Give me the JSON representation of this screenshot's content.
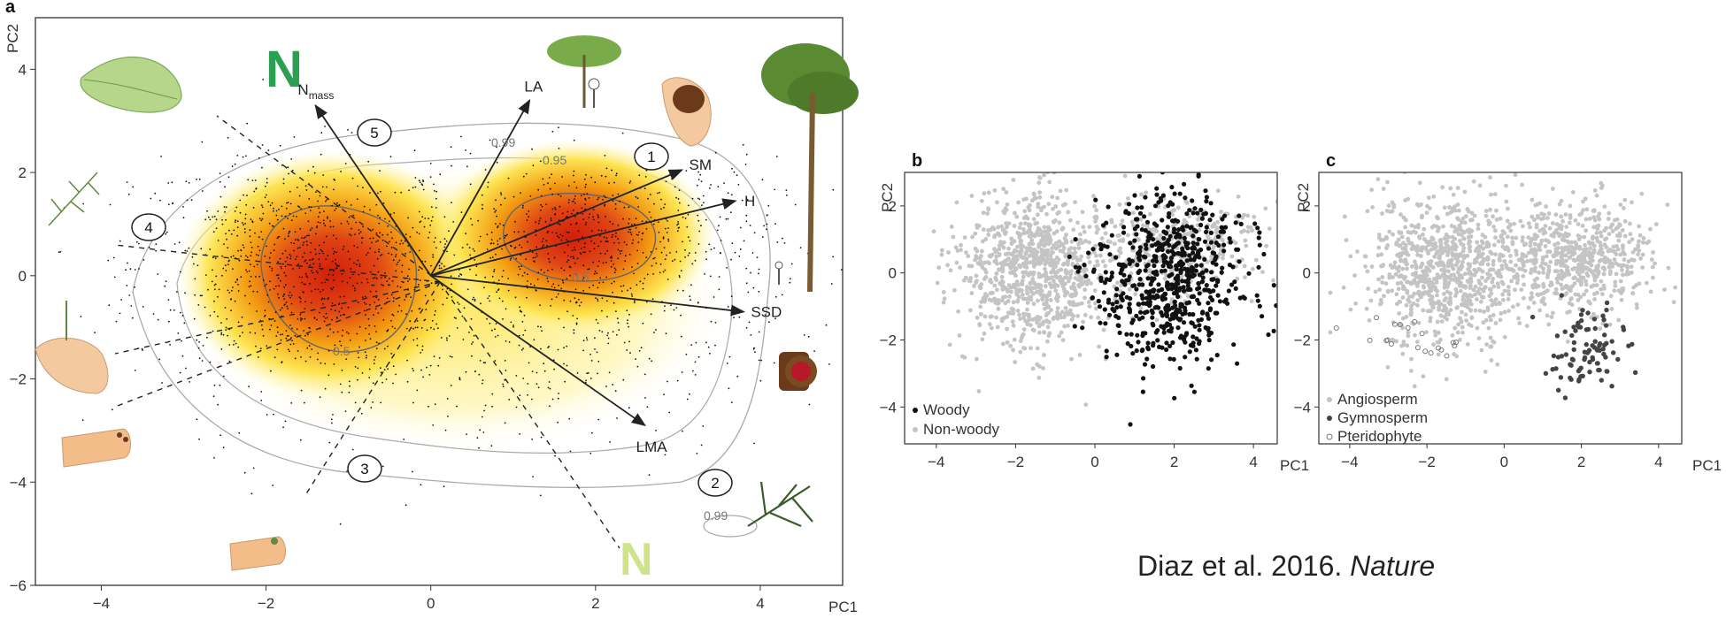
{
  "chart_data": [
    {
      "panel": "a",
      "type": "scatter",
      "description_type": "PCA biplot with density shading and trait loading arrows",
      "xlabel": "PC1",
      "ylabel": "PC2",
      "xlim": [
        -4.8,
        5.0
      ],
      "ylim": [
        -6,
        5.0
      ],
      "xticks": [
        -4,
        -2,
        0,
        2,
        4
      ],
      "yticks": [
        -6,
        -4,
        -2,
        0,
        2,
        4
      ],
      "xtick_labels": [
        "−4",
        "−2",
        "0",
        "2",
        "4"
      ],
      "ytick_labels": [
        "−6",
        "−4",
        "−2",
        "0",
        "2",
        "4"
      ],
      "arrows": [
        {
          "label": "N",
          "sub": "mass",
          "x": -1.4,
          "y": 3.3
        },
        {
          "label": "LA",
          "x": 1.2,
          "y": 3.4
        },
        {
          "label": "SM",
          "x": 3.05,
          "y": 2.05
        },
        {
          "label": "H",
          "x": 3.7,
          "y": 1.45
        },
        {
          "label": "SSD",
          "x": 3.8,
          "y": -0.7
        },
        {
          "label": "LMA",
          "x": 2.6,
          "y": -2.9
        }
      ],
      "contour_labels": [
        "0.99",
        "0.95",
        "0.5",
        "0.5",
        "0.99"
      ],
      "regions": [
        "1",
        "2",
        "3",
        "4",
        "5"
      ],
      "colors": {
        "high": "#cc2200",
        "mid": "#f08c00",
        "low": "#ffee55",
        "arrow": "#222222"
      }
    },
    {
      "panel": "b",
      "type": "scatter",
      "xlabel": "PC1",
      "ylabel": "PC2",
      "xlim": [
        -4.8,
        4.6
      ],
      "ylim": [
        -5.1,
        3.0
      ],
      "xticks": [
        -4,
        -2,
        0,
        2,
        4
      ],
      "yticks": [
        -4,
        -2,
        0,
        2
      ],
      "xtick_labels": [
        "−4",
        "−2",
        "0",
        "2",
        "4"
      ],
      "ytick_labels": [
        "−4",
        "−2",
        "0",
        "2"
      ],
      "series": [
        {
          "name": "Woody",
          "color": "#111111",
          "center": [
            1.9,
            -0.1
          ],
          "spread": [
            0.9,
            1.3
          ]
        },
        {
          "name": "Non-woody",
          "color": "#c4c4c4",
          "center": [
            -1.5,
            0.1
          ],
          "spread": [
            1.0,
            1.1
          ]
        }
      ],
      "legend": "bottom-left"
    },
    {
      "panel": "c",
      "type": "scatter",
      "xlabel": "PC1",
      "ylabel": "PC2",
      "xlim": [
        -4.8,
        4.6
      ],
      "ylim": [
        -5.1,
        3.0
      ],
      "xticks": [
        -4,
        -2,
        0,
        2,
        4
      ],
      "yticks": [
        -4,
        -2,
        0,
        2
      ],
      "xtick_labels": [
        "−4",
        "−2",
        "0",
        "2",
        "4"
      ],
      "ytick_labels": [
        "−4",
        "−2",
        "0",
        "2"
      ],
      "series": [
        {
          "name": "Angiosperm",
          "color": "#c4c4c4",
          "marker": "filled"
        },
        {
          "name": "Gymnosperm",
          "color": "#444444",
          "marker": "filled",
          "center": [
            2.1,
            -2.3
          ],
          "spread": [
            0.5,
            0.6
          ]
        },
        {
          "name": "Pteridophyte",
          "color": "#777777",
          "marker": "open",
          "center": [
            -2.2,
            -2.0
          ],
          "spread": [
            0.9,
            0.4
          ]
        }
      ],
      "legend": "bottom-left"
    }
  ],
  "citation": {
    "text": "Diaz et al. 2016. ",
    "journal": "Nature"
  }
}
